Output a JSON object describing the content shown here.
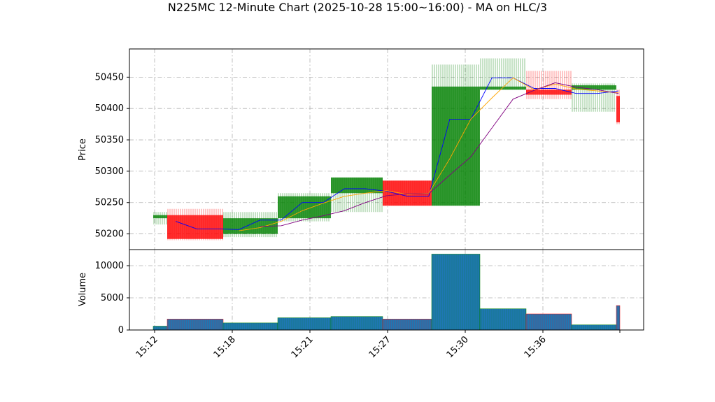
{
  "chart_data": {
    "type": "candlestick",
    "title": "N225MC 12-Minute Chart (2025-10-28 15:00~16:00) - MA on HLC/3",
    "price_panel": {
      "ylabel": "Price",
      "ylim": [
        50175,
        50495
      ],
      "yticks": [
        50200,
        50250,
        50300,
        50350,
        50400,
        50450
      ],
      "grid": true
    },
    "volume_panel": {
      "ylabel": "Volume",
      "ylim": [
        0,
        12500
      ],
      "yticks": [
        0,
        5000,
        10000
      ],
      "grid": true
    },
    "x_ticks": [
      "15:12",
      "15:18",
      "15:21",
      "15:27",
      "15:30",
      "15:36"
    ],
    "colors": {
      "up": "#008000",
      "down": "#ff0000",
      "volume": "#1f77b4",
      "ma1": "#0000ff",
      "ma2": "#ffa500",
      "ma3": "#800080",
      "grid": "#b0b0b0"
    },
    "bars": [
      {
        "open": 50225,
        "high": 50235,
        "low": 50215,
        "close": 50230,
        "volume": 600
      },
      {
        "open": 50230,
        "high": 50240,
        "low": 50190,
        "close": 50192,
        "volume": 1700
      },
      {
        "open": 50200,
        "high": 50235,
        "low": 50195,
        "close": 50225,
        "volume": 1100
      },
      {
        "open": 50225,
        "high": 50265,
        "low": 50220,
        "close": 50260,
        "volume": 1900
      },
      {
        "open": 50265,
        "high": 50290,
        "low": 50235,
        "close": 50290,
        "volume": 2100
      },
      {
        "open": 50285,
        "high": 50285,
        "low": 50245,
        "close": 50245,
        "volume": 1700
      },
      {
        "open": 50245,
        "high": 50470,
        "low": 50245,
        "close": 50435,
        "volume": 11800
      },
      {
        "open": 50430,
        "high": 50480,
        "low": 50430,
        "close": 50435,
        "volume": 3300
      },
      {
        "open": 50430,
        "high": 50460,
        "low": 50415,
        "close": 50422,
        "volume": 2500
      },
      {
        "open": 50430,
        "high": 50440,
        "low": 50395,
        "close": 50437,
        "volume": 800
      },
      {
        "open": 50420,
        "high": 50430,
        "low": 50375,
        "close": 50378,
        "volume": 3800
      }
    ],
    "series": [
      {
        "values": [
          null,
          50220,
          50208,
          50208,
          50207,
          50222,
          50222,
          50250,
          50250,
          50272,
          50272,
          50268,
          50260,
          50260,
          50383,
          50383,
          50449,
          50449,
          50432,
          50432,
          50424,
          50424,
          50428
        ]
      },
      {
        "values": [
          null,
          null,
          null,
          null,
          50205,
          50210,
          50220,
          50237,
          50249,
          50260,
          50265,
          50269,
          50263,
          50265,
          50320,
          50383,
          50417,
          50449,
          50430,
          50439,
          50431,
          50428,
          50425
        ]
      },
      {
        "values": [
          null,
          null,
          null,
          null,
          null,
          50212,
          50213,
          50222,
          50229,
          50237,
          50250,
          50261,
          50264,
          50264,
          50294,
          50323,
          50369,
          50415,
          50429,
          50441,
          50434,
          50430,
          50424
        ]
      }
    ]
  }
}
